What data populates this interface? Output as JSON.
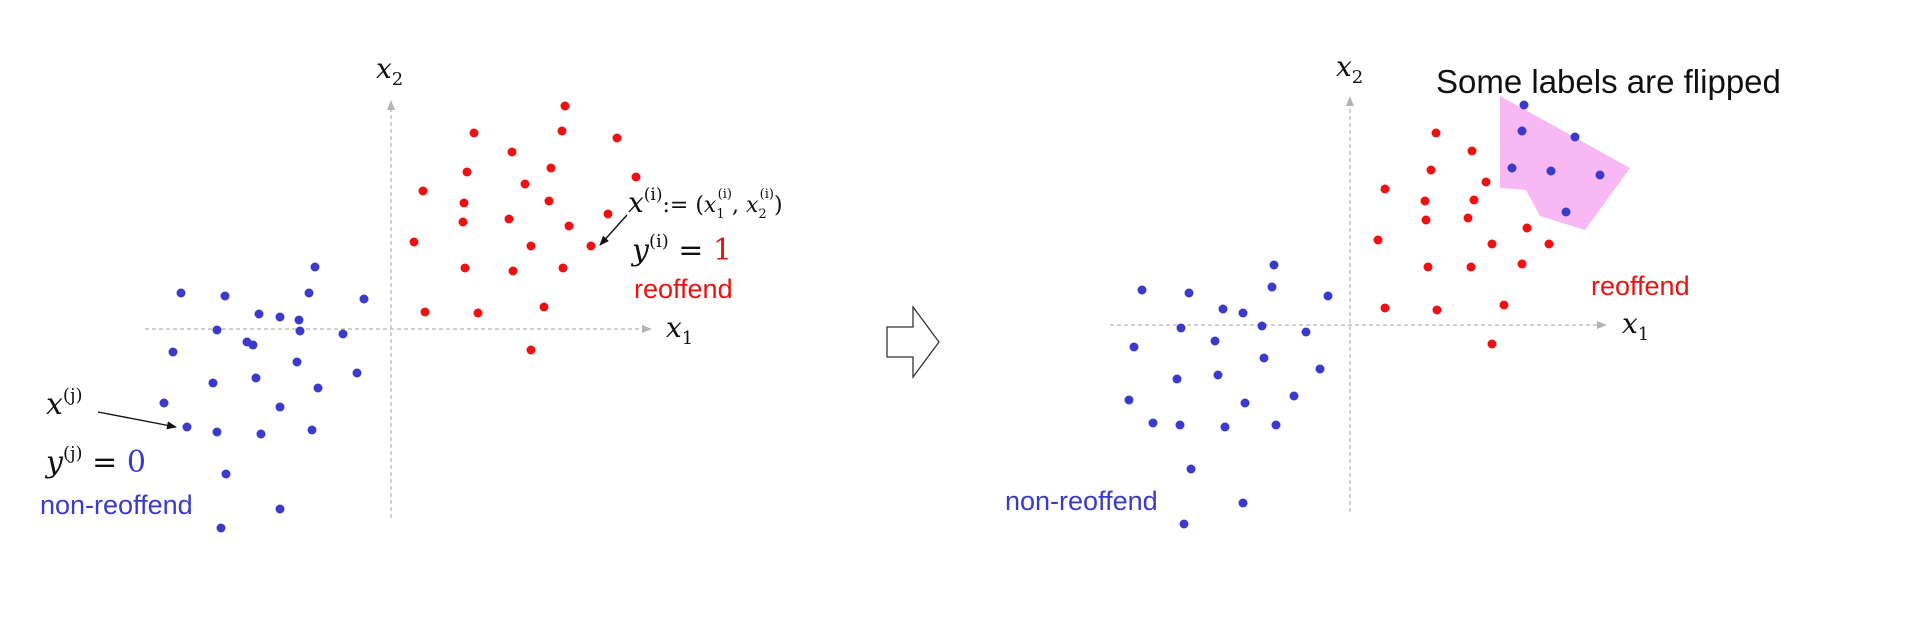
{
  "colors": {
    "negative": "#3a3acc",
    "positive": "#ee1111",
    "flip_region": "#f7b8f3",
    "axis": "#b4b4b4",
    "text": "#111111"
  },
  "left_panel": {
    "axis_x_label": "x",
    "axis_x_sub": "1",
    "axis_y_label": "x",
    "axis_y_sub": "2",
    "point_i": {
      "x_name": "x",
      "x_sup": "(i)",
      "assign": ":= (",
      "x1_name": "x",
      "x1_sub": "1",
      "x1_sup": "(i)",
      "comma": ", ",
      "x2_name": "x",
      "x2_sub": "2",
      "x2_sup": "(i)",
      "close": ")",
      "y_name": "y",
      "y_sup": "(i)",
      "eq": " = ",
      "y_value": "1",
      "class_label": "reoffend"
    },
    "point_j": {
      "x_name": "x",
      "x_sup": "(j)",
      "y_name": "y",
      "y_sup": "(j)",
      "eq": " = ",
      "y_value": "0",
      "class_label": "non-reoffend"
    }
  },
  "transition_icon": "right-arrow-icon",
  "right_panel": {
    "axis_x_label": "x",
    "axis_x_sub": "1",
    "axis_y_label": "x",
    "axis_y_sub": "2",
    "title": "Some labels are flipped",
    "positive_label": "reoffend",
    "negative_label": "non-reoffend"
  }
}
